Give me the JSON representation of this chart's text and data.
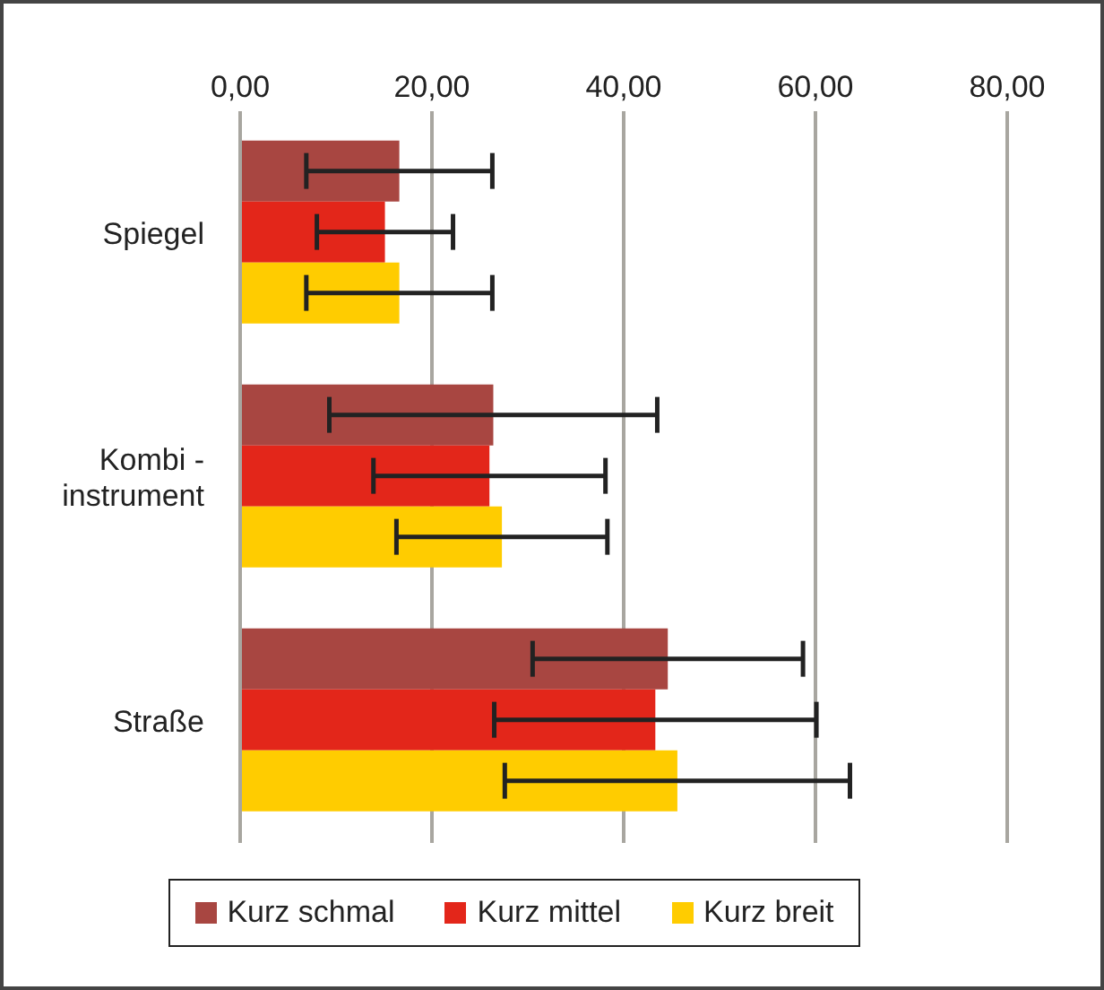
{
  "chart_data": {
    "type": "bar",
    "orientation": "horizontal",
    "categories": [
      "Spiegel",
      "Kombi - instrument",
      "Straße"
    ],
    "series": [
      {
        "name": "Kurz schmal",
        "color": "#a84641",
        "values": [
          16.6,
          26.4,
          44.6
        ],
        "errors": [
          9.7,
          17.1,
          14.1
        ]
      },
      {
        "name": "Kurz mittel",
        "color": "#e3261a",
        "values": [
          15.1,
          26.0,
          43.3
        ],
        "errors": [
          7.1,
          12.1,
          16.8
        ]
      },
      {
        "name": "Kurz breit",
        "color": "#ffcc00",
        "values": [
          16.6,
          27.3,
          45.6
        ],
        "errors": [
          9.7,
          11.0,
          18.0
        ]
      }
    ],
    "xlim": [
      0,
      80
    ],
    "xticks": [
      {
        "value": 0,
        "label": "0,00"
      },
      {
        "value": 20,
        "label": "20,00"
      },
      {
        "value": 40,
        "label": "40,00"
      },
      {
        "value": 60,
        "label": "60,00"
      },
      {
        "value": 80,
        "label": "80,00"
      }
    ],
    "grid": "x",
    "legend": "bottom"
  }
}
